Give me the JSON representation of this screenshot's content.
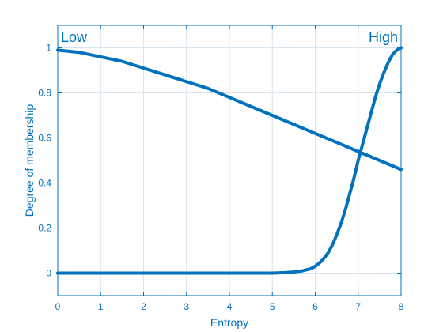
{
  "colors": {
    "series": "#0072BD",
    "axis": "#0072BD",
    "grid": "#d8e4ee"
  },
  "chart_data": {
    "type": "line",
    "xlabel": "Entropy",
    "ylabel": "Degree of membership",
    "xlim": [
      0,
      8
    ],
    "ylim": [
      -0.1,
      1.1
    ],
    "xticks": [
      0,
      1,
      2,
      3,
      4,
      5,
      6,
      7,
      8
    ],
    "yticks": [
      0,
      0.2,
      0.4,
      0.6,
      0.8,
      1
    ],
    "xtick_labels": [
      "0",
      "1",
      "2",
      "3",
      "4",
      "5",
      "6",
      "7",
      "8"
    ],
    "ytick_labels": [
      "0",
      "0.2",
      "0.4",
      "0.6",
      "0.8",
      "1"
    ],
    "grid": true,
    "series": [
      {
        "name": "Low",
        "label_position": "top-left",
        "x": [
          0,
          0.5,
          1,
          1.5,
          2,
          2.5,
          3,
          3.5,
          4,
          4.5,
          5,
          5.5,
          6,
          6.5,
          7,
          7.5,
          8
        ],
        "values": [
          0.99,
          0.98,
          0.96,
          0.94,
          0.91,
          0.88,
          0.85,
          0.82,
          0.78,
          0.74,
          0.7,
          0.66,
          0.62,
          0.58,
          0.54,
          0.5,
          0.46
        ]
      },
      {
        "name": "High",
        "label_position": "top-right",
        "x": [
          0,
          1,
          2,
          3,
          4,
          5,
          5.3,
          5.5,
          5.7,
          5.9,
          6.0,
          6.1,
          6.2,
          6.3,
          6.4,
          6.5,
          6.6,
          6.7,
          6.8,
          6.9,
          7.0,
          7.1,
          7.2,
          7.3,
          7.4,
          7.5,
          7.6,
          7.7,
          7.8,
          7.9,
          8.0
        ],
        "values": [
          0,
          0,
          0,
          0,
          0,
          0,
          0.002,
          0.005,
          0.01,
          0.02,
          0.03,
          0.045,
          0.065,
          0.09,
          0.125,
          0.17,
          0.22,
          0.28,
          0.35,
          0.42,
          0.5,
          0.57,
          0.64,
          0.71,
          0.78,
          0.84,
          0.89,
          0.935,
          0.97,
          0.99,
          1.0
        ]
      }
    ]
  }
}
